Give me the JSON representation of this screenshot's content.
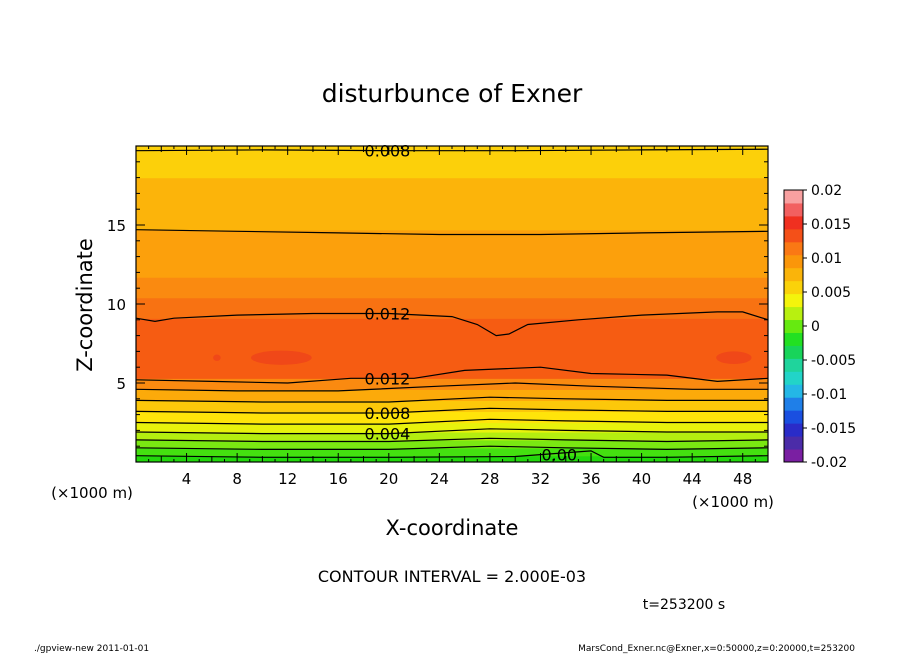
{
  "chart_data": {
    "type": "heatmap",
    "title": "disturbunce of Exner",
    "xlabel": "X-coordinate",
    "ylabel": "Z-coordinate",
    "x_unit": "(×1000 m)",
    "y_unit": "(×1000 m)",
    "xlim": [
      0,
      50
    ],
    "ylim": [
      0,
      20
    ],
    "x_ticks": [
      4,
      8,
      12,
      16,
      20,
      24,
      28,
      32,
      36,
      40,
      44,
      48
    ],
    "y_ticks": [
      5,
      10,
      15
    ],
    "colorbar": {
      "ticks": [
        "0.02",
        "0.015",
        "0.01",
        "0.005",
        "0",
        "-0.005",
        "-0.01",
        "-0.015",
        "-0.02"
      ],
      "range": [
        -0.02,
        0.02
      ],
      "colors": [
        "#7a1fa2",
        "#4b2ca8",
        "#2a2cc8",
        "#1a4fe0",
        "#1f7fe8",
        "#24b7e6",
        "#22d4c8",
        "#1fd49c",
        "#18d45a",
        "#22e022",
        "#66ea10",
        "#b8f010",
        "#f4f40c",
        "#fad20a",
        "#fab40a",
        "#fa960a",
        "#fa7814",
        "#f45018",
        "#f03020",
        "#f26060",
        "#f8a0a0"
      ]
    },
    "bands": [
      {
        "z": [
          0.0,
          0.4
        ],
        "color": "#22d80c"
      },
      {
        "z": [
          0.4,
          0.9
        ],
        "color": "#44e010"
      },
      {
        "z": [
          0.9,
          1.4
        ],
        "color": "#7ae812"
      },
      {
        "z": [
          1.4,
          1.9
        ],
        "color": "#b4ee10"
      },
      {
        "z": [
          1.9,
          2.5
        ],
        "color": "#e8f20c"
      },
      {
        "z": [
          2.5,
          3.2
        ],
        "color": "#ffe40a"
      },
      {
        "z": [
          3.2,
          3.9
        ],
        "color": "#fcc80a"
      },
      {
        "z": [
          3.9,
          4.6
        ],
        "color": "#fcaa0a"
      },
      {
        "z": [
          4.6,
          5.3
        ],
        "color": "#fa8a10"
      },
      {
        "z": [
          5.3,
          9.1
        ],
        "color": "#f65c12"
      },
      {
        "z": [
          9.1,
          10.4
        ],
        "color": "#f87212"
      },
      {
        "z": [
          10.4,
          11.7
        ],
        "color": "#fa8a10"
      },
      {
        "z": [
          11.7,
          14.7
        ],
        "color": "#fca00c"
      },
      {
        "z": [
          14.7,
          18.0
        ],
        "color": "#fcb40a"
      },
      {
        "z": [
          18.0,
          20.0
        ],
        "color": "#fcd00a"
      }
    ],
    "contours": [
      {
        "label": "0.008",
        "label_x": 18,
        "points": [
          [
            0,
            19.7
          ],
          [
            10,
            19.75
          ],
          [
            20,
            19.7
          ],
          [
            30,
            19.7
          ],
          [
            40,
            19.75
          ],
          [
            50,
            19.8
          ]
        ]
      },
      {
        "label": "",
        "label_x": null,
        "points": [
          [
            0,
            14.7
          ],
          [
            8,
            14.6
          ],
          [
            16,
            14.5
          ],
          [
            24,
            14.4
          ],
          [
            32,
            14.4
          ],
          [
            40,
            14.5
          ],
          [
            50,
            14.6
          ]
        ]
      },
      {
        "label": "0.012",
        "label_x": 18,
        "points": [
          [
            0,
            9.1
          ],
          [
            1.5,
            8.9
          ],
          [
            3,
            9.1
          ],
          [
            8,
            9.3
          ],
          [
            14,
            9.4
          ],
          [
            20,
            9.4
          ],
          [
            25,
            9.2
          ],
          [
            27,
            8.7
          ],
          [
            28.5,
            8.0
          ],
          [
            29.5,
            8.1
          ],
          [
            31,
            8.7
          ],
          [
            35,
            9.0
          ],
          [
            40,
            9.3
          ],
          [
            46,
            9.5
          ],
          [
            48,
            9.5
          ],
          [
            50,
            9.0
          ]
        ]
      },
      {
        "label": "0.012",
        "label_x": 18,
        "points": [
          [
            0,
            5.2
          ],
          [
            6,
            5.1
          ],
          [
            12,
            5.0
          ],
          [
            17,
            5.3
          ],
          [
            22,
            5.3
          ],
          [
            26,
            5.8
          ],
          [
            32,
            6.0
          ],
          [
            36,
            5.6
          ],
          [
            42,
            5.5
          ],
          [
            46,
            5.1
          ],
          [
            50,
            5.3
          ]
        ]
      },
      {
        "label": "",
        "label_x": null,
        "points": [
          [
            0,
            4.6
          ],
          [
            8,
            4.5
          ],
          [
            16,
            4.5
          ],
          [
            24,
            4.8
          ],
          [
            30,
            5.0
          ],
          [
            36,
            4.8
          ],
          [
            44,
            4.6
          ],
          [
            50,
            4.6
          ]
        ]
      },
      {
        "label": "",
        "label_x": null,
        "points": [
          [
            0,
            3.9
          ],
          [
            10,
            3.8
          ],
          [
            20,
            3.8
          ],
          [
            28,
            4.1
          ],
          [
            34,
            4.0
          ],
          [
            42,
            3.9
          ],
          [
            50,
            3.9
          ]
        ]
      },
      {
        "label": "0.008",
        "label_x": 18,
        "points": [
          [
            0,
            3.2
          ],
          [
            10,
            3.1
          ],
          [
            20,
            3.1
          ],
          [
            28,
            3.4
          ],
          [
            34,
            3.3
          ],
          [
            42,
            3.2
          ],
          [
            50,
            3.2
          ]
        ]
      },
      {
        "label": "",
        "label_x": null,
        "points": [
          [
            0,
            2.5
          ],
          [
            10,
            2.4
          ],
          [
            20,
            2.4
          ],
          [
            28,
            2.7
          ],
          [
            34,
            2.6
          ],
          [
            42,
            2.5
          ],
          [
            50,
            2.5
          ]
        ]
      },
      {
        "label": "0.004",
        "label_x": 18,
        "points": [
          [
            0,
            1.9
          ],
          [
            10,
            1.8
          ],
          [
            20,
            1.8
          ],
          [
            28,
            2.1
          ],
          [
            34,
            2.0
          ],
          [
            42,
            1.9
          ],
          [
            50,
            1.9
          ]
        ]
      },
      {
        "label": "",
        "label_x": null,
        "points": [
          [
            0,
            1.4
          ],
          [
            10,
            1.3
          ],
          [
            20,
            1.3
          ],
          [
            28,
            1.5
          ],
          [
            34,
            1.4
          ],
          [
            42,
            1.3
          ],
          [
            50,
            1.4
          ]
        ]
      },
      {
        "label": "",
        "label_x": null,
        "points": [
          [
            0,
            0.9
          ],
          [
            10,
            0.8
          ],
          [
            20,
            0.8
          ],
          [
            28,
            1.0
          ],
          [
            34,
            0.9
          ],
          [
            42,
            0.8
          ],
          [
            50,
            0.9
          ]
        ]
      },
      {
        "label": "0.00",
        "label_x": 32,
        "points": [
          [
            0,
            0.4
          ],
          [
            10,
            0.3
          ],
          [
            20,
            0.3
          ],
          [
            30,
            0.35
          ],
          [
            36,
            0.7
          ],
          [
            37,
            0.3
          ],
          [
            42,
            0.3
          ],
          [
            50,
            0.4
          ]
        ]
      }
    ],
    "patches": [
      {
        "cx": 11.5,
        "cz": 6.6,
        "rx": 2.4,
        "rz": 0.45,
        "color": "#f04818"
      },
      {
        "cx": 47.3,
        "cz": 6.6,
        "rx": 1.4,
        "rz": 0.4,
        "color": "#f04818"
      },
      {
        "cx": 6.4,
        "cz": 6.6,
        "rx": 0.3,
        "rz": 0.2,
        "color": "#f04818"
      }
    ]
  },
  "footer": {
    "contour_interval": "CONTOUR INTERVAL = 2.000E-03",
    "time": "t=253200 s",
    "left_note": "./gpview-new   2011-01-01",
    "right_note": "MarsCond_Exner.nc@Exner,x=0:50000,z=0:20000,t=253200"
  }
}
